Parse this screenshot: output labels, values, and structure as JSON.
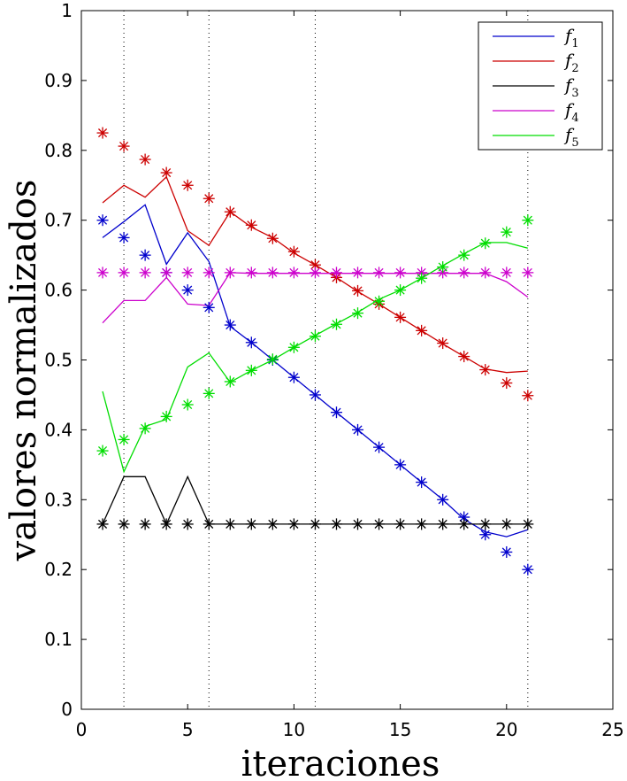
{
  "chart_data": {
    "type": "line",
    "title": "",
    "xlabel": "iteraciones",
    "ylabel": "valores normalizados",
    "xlim": [
      0,
      25
    ],
    "ylim": [
      0,
      1
    ],
    "xticks": [
      0,
      5,
      10,
      15,
      20,
      25
    ],
    "yticks": [
      0,
      0.1,
      0.2,
      0.3,
      0.4,
      0.5,
      0.6,
      0.7,
      0.8,
      0.9,
      1
    ],
    "xtick_labels": [
      "0",
      "5",
      "10",
      "15",
      "20",
      "25"
    ],
    "ytick_labels": [
      "0",
      "0.1",
      "0.2",
      "0.3",
      "0.4",
      "0.5",
      "0.6",
      "0.7",
      "0.8",
      "0.9",
      "1"
    ],
    "vlines": [
      2,
      6,
      11,
      21
    ],
    "grid": false,
    "legend_position": "top-right",
    "series": [
      {
        "name": "f1",
        "base": "f",
        "sub": "1",
        "color": "#0000cc",
        "line": {
          "x": [
            1,
            2,
            3,
            4,
            5,
            6,
            7,
            8,
            9,
            10,
            11,
            12,
            13,
            14,
            15,
            16,
            17,
            18,
            19,
            20,
            21
          ],
          "y": [
            0.675,
            0.698,
            0.722,
            0.637,
            0.682,
            0.641,
            0.548,
            0.525,
            0.5,
            0.475,
            0.45,
            0.425,
            0.4,
            0.375,
            0.35,
            0.325,
            0.3,
            0.272,
            0.254,
            0.247,
            0.257
          ]
        },
        "markers": {
          "x": [
            1,
            2,
            3,
            4,
            5,
            6,
            7,
            8,
            9,
            10,
            11,
            12,
            13,
            14,
            15,
            16,
            17,
            18,
            19,
            20,
            21
          ],
          "y": [
            0.7,
            0.675,
            0.65,
            0.625,
            0.6,
            0.575,
            0.55,
            0.525,
            0.5,
            0.475,
            0.45,
            0.425,
            0.4,
            0.375,
            0.35,
            0.325,
            0.3,
            0.275,
            0.25,
            0.225,
            0.2
          ]
        }
      },
      {
        "name": "f2",
        "base": "f",
        "sub": "2",
        "color": "#cc0000",
        "line": {
          "x": [
            1,
            2,
            3,
            4,
            5,
            6,
            7,
            8,
            9,
            10,
            11,
            12,
            13,
            14,
            15,
            16,
            17,
            18,
            19,
            20,
            21
          ],
          "y": [
            0.725,
            0.75,
            0.733,
            0.762,
            0.685,
            0.664,
            0.712,
            0.69,
            0.675,
            0.653,
            0.636,
            0.618,
            0.598,
            0.58,
            0.561,
            0.542,
            0.523,
            0.505,
            0.487,
            0.482,
            0.484
          ]
        },
        "markers": {
          "x": [
            1,
            2,
            3,
            4,
            5,
            6,
            7,
            8,
            9,
            10,
            11,
            12,
            13,
            14,
            15,
            16,
            17,
            18,
            19,
            20,
            21
          ],
          "y": [
            0.825,
            0.806,
            0.787,
            0.768,
            0.75,
            0.731,
            0.712,
            0.693,
            0.674,
            0.655,
            0.636,
            0.618,
            0.599,
            0.58,
            0.561,
            0.542,
            0.524,
            0.505,
            0.486,
            0.467,
            0.449
          ]
        }
      },
      {
        "name": "f3",
        "base": "f",
        "sub": "3",
        "color": "#000000",
        "line": {
          "x": [
            1,
            2,
            3,
            4,
            5,
            6,
            7,
            8,
            9,
            10,
            11,
            12,
            13,
            14,
            15,
            16,
            17,
            18,
            19,
            20,
            21
          ],
          "y": [
            0.265,
            0.333,
            0.333,
            0.265,
            0.333,
            0.265,
            0.265,
            0.265,
            0.265,
            0.265,
            0.265,
            0.265,
            0.265,
            0.265,
            0.265,
            0.265,
            0.265,
            0.265,
            0.265,
            0.265,
            0.265
          ]
        },
        "markers": {
          "x": [
            1,
            2,
            3,
            4,
            5,
            6,
            7,
            8,
            9,
            10,
            11,
            12,
            13,
            14,
            15,
            16,
            17,
            18,
            19,
            20,
            21
          ],
          "y": [
            0.265,
            0.265,
            0.265,
            0.265,
            0.265,
            0.265,
            0.265,
            0.265,
            0.265,
            0.265,
            0.265,
            0.265,
            0.265,
            0.265,
            0.265,
            0.265,
            0.265,
            0.265,
            0.265,
            0.265,
            0.265
          ]
        }
      },
      {
        "name": "f4",
        "base": "f",
        "sub": "4",
        "color": "#cc00cc",
        "line": {
          "x": [
            1,
            2,
            3,
            4,
            5,
            6,
            7,
            8,
            9,
            10,
            11,
            12,
            13,
            14,
            15,
            16,
            17,
            18,
            19,
            20,
            21
          ],
          "y": [
            0.553,
            0.585,
            0.585,
            0.618,
            0.58,
            0.578,
            0.625,
            0.624,
            0.624,
            0.624,
            0.624,
            0.624,
            0.624,
            0.624,
            0.624,
            0.624,
            0.624,
            0.624,
            0.624,
            0.612,
            0.59
          ]
        },
        "markers": {
          "x": [
            1,
            2,
            3,
            4,
            5,
            6,
            7,
            8,
            9,
            10,
            11,
            12,
            13,
            14,
            15,
            16,
            17,
            18,
            19,
            20,
            21
          ],
          "y": [
            0.625,
            0.625,
            0.625,
            0.625,
            0.625,
            0.625,
            0.625,
            0.625,
            0.625,
            0.625,
            0.625,
            0.625,
            0.625,
            0.625,
            0.625,
            0.625,
            0.625,
            0.625,
            0.625,
            0.625,
            0.625
          ]
        }
      },
      {
        "name": "f5",
        "base": "f",
        "sub": "5",
        "color": "#00dd00",
        "line": {
          "x": [
            1,
            2,
            3,
            4,
            5,
            6,
            7,
            8,
            9,
            10,
            11,
            12,
            13,
            14,
            15,
            16,
            17,
            18,
            19,
            20,
            21
          ],
          "y": [
            0.455,
            0.34,
            0.405,
            0.415,
            0.49,
            0.51,
            0.468,
            0.485,
            0.5,
            0.518,
            0.535,
            0.552,
            0.568,
            0.587,
            0.6,
            0.617,
            0.635,
            0.652,
            0.668,
            0.668,
            0.66
          ]
        },
        "markers": {
          "x": [
            1,
            2,
            3,
            4,
            5,
            6,
            7,
            8,
            9,
            10,
            11,
            12,
            13,
            14,
            15,
            16,
            17,
            18,
            19,
            20,
            21
          ],
          "y": [
            0.37,
            0.386,
            0.402,
            0.419,
            0.436,
            0.452,
            0.469,
            0.485,
            0.501,
            0.518,
            0.534,
            0.551,
            0.567,
            0.584,
            0.6,
            0.617,
            0.633,
            0.65,
            0.667,
            0.683,
            0.7
          ]
        }
      }
    ]
  }
}
